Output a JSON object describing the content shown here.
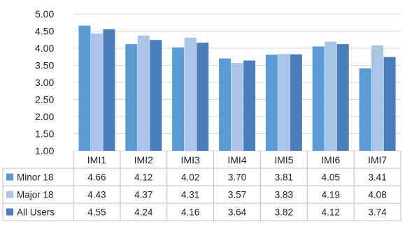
{
  "chart_data": {
    "type": "bar",
    "categories": [
      "IMI1",
      "IMI2",
      "IMI3",
      "IMI4",
      "IMI5",
      "IMI6",
      "IMI7"
    ],
    "series": [
      {
        "name": "Minor 18",
        "values": [
          4.66,
          4.12,
          4.02,
          3.7,
          3.81,
          4.05,
          3.41
        ],
        "labels": [
          "4.66",
          "4.12",
          "4.02",
          "3.70",
          "3.81",
          "4.05",
          "3.41"
        ],
        "color": "#5B9BD5"
      },
      {
        "name": "Major 18",
        "values": [
          4.43,
          4.37,
          4.31,
          3.57,
          3.83,
          4.19,
          4.08
        ],
        "labels": [
          "4.43",
          "4.37",
          "4.31",
          "3.57",
          "3.83",
          "4.19",
          "4.08"
        ],
        "color": "#A9C4E7"
      },
      {
        "name": "All Users",
        "values": [
          4.55,
          4.24,
          4.16,
          3.64,
          3.82,
          4.12,
          3.74
        ],
        "labels": [
          "4.55",
          "4.24",
          "4.16",
          "3.64",
          "3.82",
          "4.12",
          "3.74"
        ],
        "color": "#4A7EBB"
      }
    ],
    "ylim": [
      1.0,
      5.0
    ],
    "yticks": [
      "1.00",
      "1.50",
      "2.00",
      "2.50",
      "3.00",
      "3.50",
      "4.00",
      "4.50",
      "5.00"
    ],
    "grid": true,
    "legend": "data-table"
  }
}
